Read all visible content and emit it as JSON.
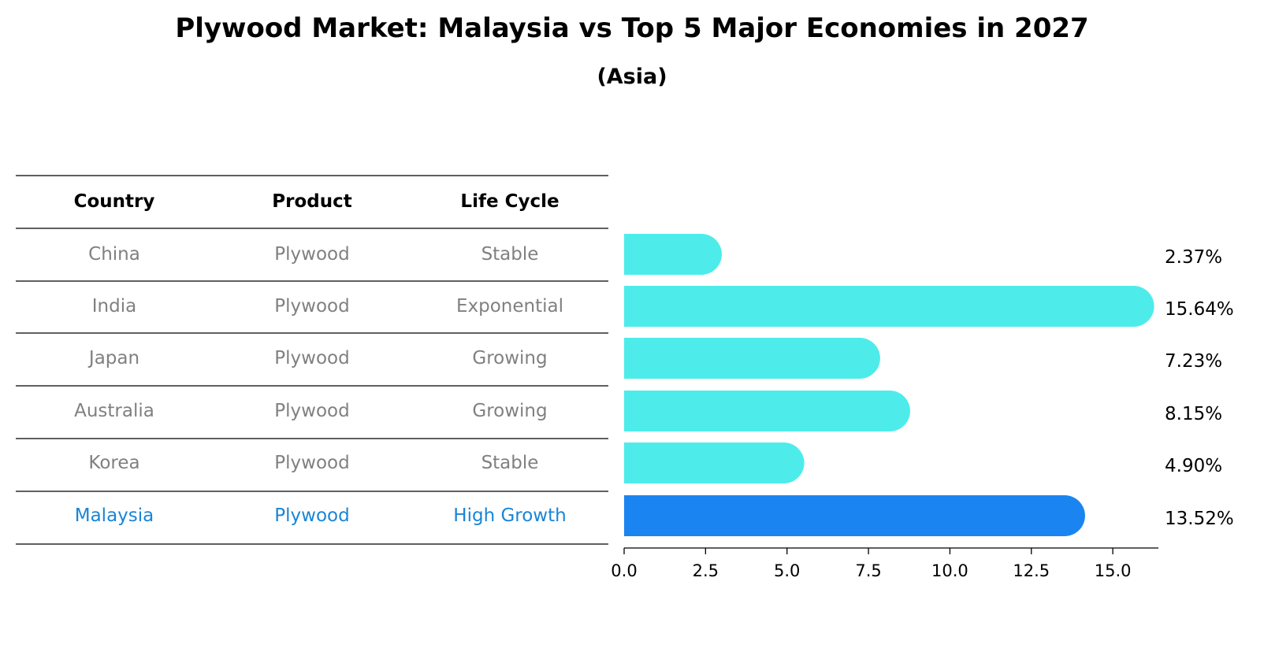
{
  "title": "Plywood Market: Malaysia vs Top 5 Major Economies in 2027",
  "subtitle": "(Asia)",
  "table": {
    "headers": [
      "Country",
      "Product",
      "Life Cycle"
    ],
    "rows": [
      [
        "China",
        "Plywood",
        "Stable"
      ],
      [
        "India",
        "Plywood",
        "Exponential"
      ],
      [
        "Japan",
        "Plywood",
        "Growing"
      ],
      [
        "Australia",
        "Plywood",
        "Growing"
      ],
      [
        "Korea",
        "Plywood",
        "Stable"
      ],
      [
        "Malaysia",
        "Plywood",
        "High Growth"
      ]
    ],
    "highlight_row": "Malaysia"
  },
  "colors": {
    "bar": "#4deceb",
    "highlight_bar": "#1a85f0",
    "highlight_text": "#1a85d6",
    "cell_text": "#808080"
  },
  "chart_data": {
    "type": "bar",
    "orientation": "horizontal",
    "categories": [
      "China",
      "India",
      "Japan",
      "Australia",
      "Korea",
      "Malaysia"
    ],
    "values": [
      2.37,
      15.64,
      7.23,
      8.15,
      4.9,
      13.52
    ],
    "value_labels": [
      "2.37%",
      "15.64%",
      "7.23%",
      "8.15%",
      "4.90%",
      "13.52%"
    ],
    "highlight": "Malaysia",
    "xlim": [
      0,
      16.4
    ],
    "xticks": [
      0.0,
      2.5,
      5.0,
      7.5,
      10.0,
      12.5,
      15.0
    ],
    "xtick_labels": [
      "0.0",
      "2.5",
      "5.0",
      "7.5",
      "10.0",
      "12.5",
      "15.0"
    ],
    "xlabel": "",
    "ylabel": "",
    "grid": false
  }
}
